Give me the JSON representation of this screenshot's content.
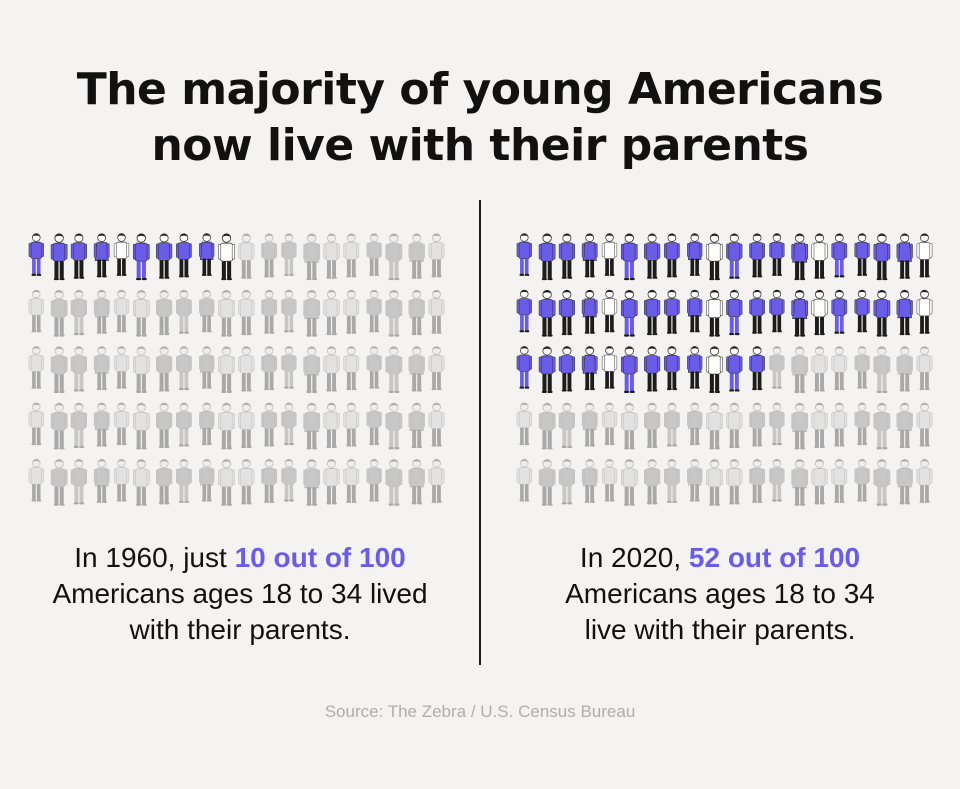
{
  "title": {
    "line1": "The majority of young Americans",
    "line2": "now live with their parents"
  },
  "colors": {
    "highlight": "#6a5ce6",
    "muted": "#c9c9c9",
    "background": "#f4f3f1",
    "text": "#111111",
    "source": "#b0aeac"
  },
  "panels": [
    {
      "total": 100,
      "highlighted": 10,
      "caption": {
        "prefix": "In 1960, just ",
        "highlight": "10 out of 100",
        "line2": "Americans ages 18 to 34 lived",
        "line3": "with their parents."
      }
    },
    {
      "total": 100,
      "highlighted": 52,
      "caption": {
        "prefix": "In 2020, ",
        "highlight": "52 out of 100",
        "line2": "Americans ages 18 to 34",
        "line3": "live with their parents."
      }
    }
  ],
  "source": "Source: The Zebra / U.S. Census Bureau"
}
